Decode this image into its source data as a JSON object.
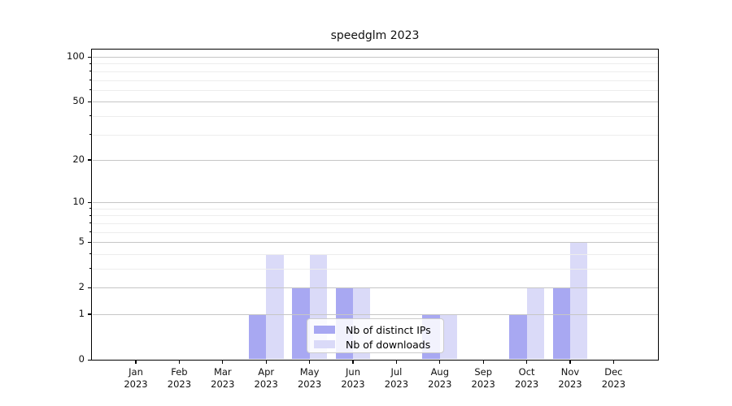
{
  "figure": {
    "title": "speedglm 2023"
  },
  "legend": {
    "items": [
      {
        "label": "Nb of distinct IPs",
        "color": "#a8a8f2"
      },
      {
        "label": "Nb of downloads",
        "color": "#dadaf8"
      }
    ]
  },
  "colors": {
    "major_grid": "#c6c6c6",
    "minor_grid": "#ededed",
    "axis": "#000000",
    "background": "#ffffff"
  },
  "chart_data": {
    "type": "bar",
    "title": "speedglm 2023",
    "categories": [
      "Jan 2023",
      "Feb 2023",
      "Mar 2023",
      "Apr 2023",
      "May 2023",
      "Jun 2023",
      "Jul 2023",
      "Aug 2023",
      "Sep 2023",
      "Oct 2023",
      "Nov 2023",
      "Dec 2023"
    ],
    "series": [
      {
        "name": "Nb of distinct IPs",
        "color": "#a8a8f2",
        "values": [
          0,
          0,
          0,
          1,
          2,
          2,
          0,
          1,
          0,
          1,
          2,
          0
        ]
      },
      {
        "name": "Nb of downloads",
        "color": "#dadaf8",
        "values": [
          0,
          0,
          0,
          4,
          4,
          2,
          0,
          1,
          0,
          2,
          5,
          0
        ]
      }
    ],
    "xlabel": "",
    "ylabel": "",
    "yscale": "log1p",
    "y_major_ticks": [
      0,
      1,
      2,
      5,
      10,
      20,
      50,
      100
    ],
    "y_minor_ticks": [
      3,
      4,
      6,
      7,
      8,
      9,
      30,
      40,
      60,
      70,
      80,
      90
    ],
    "ylim": [
      0,
      112
    ],
    "grid": true,
    "grid_above_bars": true,
    "legend_position": "lower center"
  }
}
